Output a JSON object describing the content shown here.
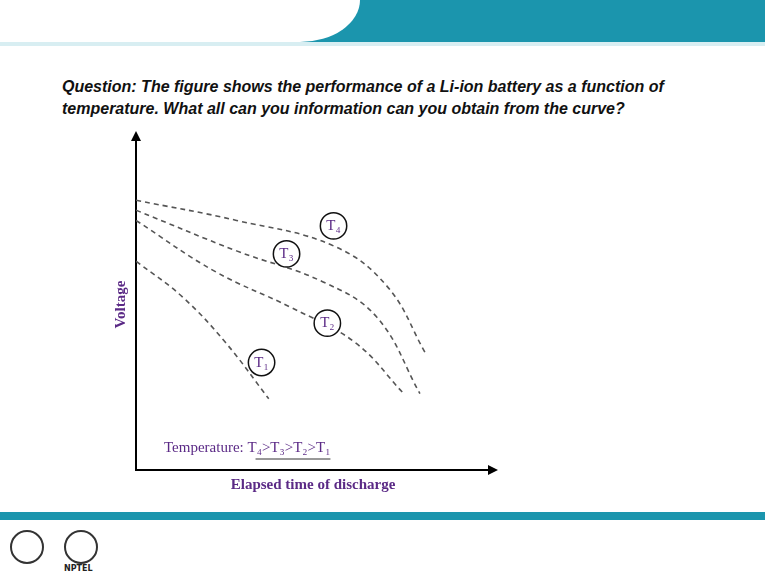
{
  "chart_data": {
    "type": "line",
    "title": "Question: The figure shows the performance of a Li-ion battery as a function of temperature. What all can you information can you obtain from the curve?",
    "x_label": "Elapsed time of discharge",
    "y_label": "Voltage",
    "annotations": [
      "Temperature: T₄>T₃>T₂>T₁"
    ],
    "series": [
      {
        "name": "T₄",
        "color": "#555555",
        "x": [
          0,
          2.84,
          5.58,
          7.1,
          8.17
        ],
        "values": [
          8.15,
          7.54,
          6.77,
          5.54,
          3.54
        ]
      },
      {
        "name": "T₃",
        "color": "#555555",
        "x": [
          0,
          2.84,
          5.27,
          6.8,
          8.02
        ],
        "values": [
          7.85,
          6.62,
          5.69,
          4.62,
          2.31
        ]
      },
      {
        "name": "T₂",
        "color": "#555555",
        "x": [
          0,
          2.23,
          4.36,
          6.19,
          7.56
        ],
        "values": [
          7.54,
          6.0,
          4.92,
          3.85,
          2.31
        ]
      },
      {
        "name": "T₁",
        "color": "#555555",
        "x": [
          0,
          1.31,
          2.53,
          3.75
        ],
        "values": [
          6.31,
          5.23,
          3.85,
          2.15
        ]
      }
    ],
    "xlim": [
      0,
      10
    ],
    "ylim": [
      0,
      10
    ],
    "grid": false,
    "tick_labels": false,
    "line_style": "dashed",
    "marker": "none"
  },
  "logo_text": "NPTEL"
}
